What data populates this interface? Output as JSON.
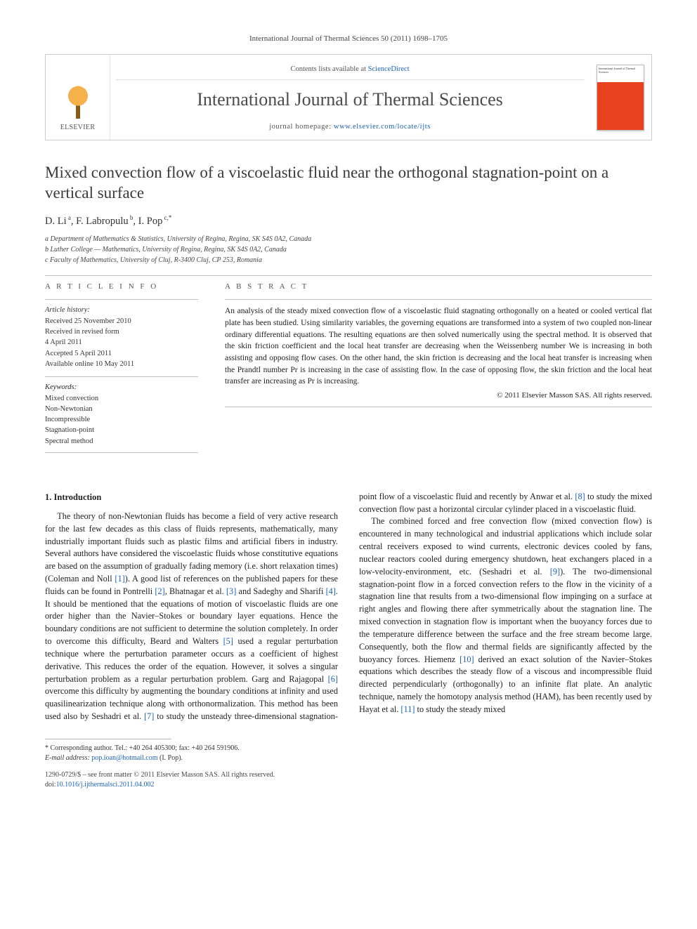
{
  "running_head": "International Journal of Thermal Sciences 50 (2011) 1698–1705",
  "masthead": {
    "publisher": "ELSEVIER",
    "contents_prefix": "Contents lists available at ",
    "contents_link": "ScienceDirect",
    "journal": "International Journal of Thermal Sciences",
    "home_prefix": "journal homepage: ",
    "home_url": "www.elsevier.com/locate/ijts",
    "cover_small_text": "International Journal of Thermal Sciences"
  },
  "title": "Mixed convection flow of a viscoelastic fluid near the orthogonal stagnation-point on a vertical surface",
  "authors_html": "D. Li<sup> a</sup>, F. Labropulu<sup> b</sup>, I. Pop<sup> c,*</sup>",
  "affiliations": [
    "a Department of Mathematics & Statistics, University of Regina, Regina, SK S4S 0A2, Canada",
    "b Luther College — Mathematics, University of Regina, Regina, SK S4S 0A2, Canada",
    "c Faculty of Mathematics, University of Cluj, R-3400 Cluj, CP 253, Romania"
  ],
  "article_info_head": "A R T I C L E   I N F O",
  "abstract_head": "A B S T R A C T",
  "history_label": "Article history:",
  "history": [
    "Received 25 November 2010",
    "Received in revised form",
    "4 April 2011",
    "Accepted 5 April 2011",
    "Available online 10 May 2011"
  ],
  "keywords_label": "Keywords:",
  "keywords": [
    "Mixed convection",
    "Non-Newtonian",
    "Incompressible",
    "Stagnation-point",
    "Spectral method"
  ],
  "abstract": "An analysis of the steady mixed convection flow of a viscoelastic fluid stagnating orthogonally on a heated or cooled vertical flat plate has been studied. Using similarity variables, the governing equations are transformed into a system of two coupled non-linear ordinary differential equations. The resulting equations are then solved numerically using the spectral method. It is observed that the skin friction coefficient and the local heat transfer are decreasing when the Weissenberg number We is increasing in both assisting and opposing flow cases. On the other hand, the skin friction is decreasing and the local heat transfer is increasing when the Prandtl number Pr is increasing in the case of assisting flow. In the case of opposing flow, the skin friction and the local heat transfer are increasing as Pr is increasing.",
  "copyright": "© 2011 Elsevier Masson SAS. All rights reserved.",
  "section_head": "1. Introduction",
  "body": {
    "p1a": "The theory of non-Newtonian fluids has become a field of very active research for the last few decades as this class of fluids represents, mathematically, many industrially important fluids such as plastic films and artificial fibers in industry. Several authors have considered the viscoelastic fluids whose constitutive equations are based on the assumption of gradually fading memory (i.e. short relaxation times) (Coleman and Noll ",
    "r1": "[1]",
    "p1b": "). A good list of references on the published papers for these fluids can be found in Pontrelli ",
    "r2": "[2]",
    "p1c": ", Bhatnagar et al. ",
    "r3": "[3]",
    "p1d": " and Sadeghy and Sharifi ",
    "r4": "[4]",
    "p1e": ". It should be mentioned that the equations of motion of viscoelastic fluids are one order higher than the Navier–Stokes or boundary layer equations. Hence the boundary conditions are not sufficient to determine the solution completely. In order to overcome this difficulty, Beard and Walters ",
    "r5": "[5]",
    "p1f": " used a regular perturbation technique where the perturbation parameter occurs as a coefficient of highest derivative. This reduces the order of the equation. However, it solves a singular perturbation problem as a regular perturbation problem. Garg and Rajagopal ",
    "r6": "[6]",
    "p1g": " overcome this difficulty by augmenting the boundary conditions at infinity ",
    "p2a": "and used quasilinearization technique along with orthonormalization. This method has been used also by Seshadri et al. ",
    "r7": "[7]",
    "p2b": " to study the unsteady three-dimensional stagnation-point flow of a viscoelastic fluid and recently by Anwar et al. ",
    "r8": "[8]",
    "p2c": " to study the mixed convection flow past a horizontal circular cylinder placed in a viscoelastic fluid.",
    "p3a": "The combined forced and free convection flow (mixed convection flow) is encountered in many technological and industrial applications which include solar central receivers exposed to wind currents, electronic devices cooled by fans, nuclear reactors cooled during emergency shutdown, heat exchangers placed in a low-velocity-environment, etc. (Seshadri et al. ",
    "r9": "[9]",
    "p3b": "). The two-dimensional stagnation-point flow in a forced convection refers to the flow in the vicinity of a stagnation line that results from a two-dimensional flow impinging on a surface at right angles and flowing there after symmetrically about the stagnation line. The mixed convection in stagnation flow is important when the buoyancy forces due to the temperature difference between the surface and the free stream become large. Consequently, both the flow and thermal fields are significantly affected by the buoyancy forces. Hiemenz ",
    "r10": "[10]",
    "p3c": " derived an exact solution of the Navier–Stokes equations which describes the steady flow of a viscous and incompressible fluid directed perpendicularly (orthogonally) to an infinite flat plate. An analytic technique, namely the homotopy analysis method (HAM), has been recently used by Hayat et al. ",
    "r11": "[11]",
    "p3d": " to study the steady mixed"
  },
  "footnote": {
    "corr": "* Corresponding author. Tel.: +40 264 405300; fax: +40 264 591906.",
    "email_label": "E-mail address: ",
    "email": "pop.ioan@hotmail.com",
    "email_who": " (I. Pop)."
  },
  "front_matter": "1290-0729/$ – see front matter © 2011 Elsevier Masson SAS. All rights reserved.",
  "doi_label": "doi:",
  "doi": "10.1016/j.ijthermalsci.2011.04.002",
  "colors": {
    "link": "#1b62b8",
    "rule": "#bfbfbf",
    "cover_accent": "#e8411f"
  }
}
